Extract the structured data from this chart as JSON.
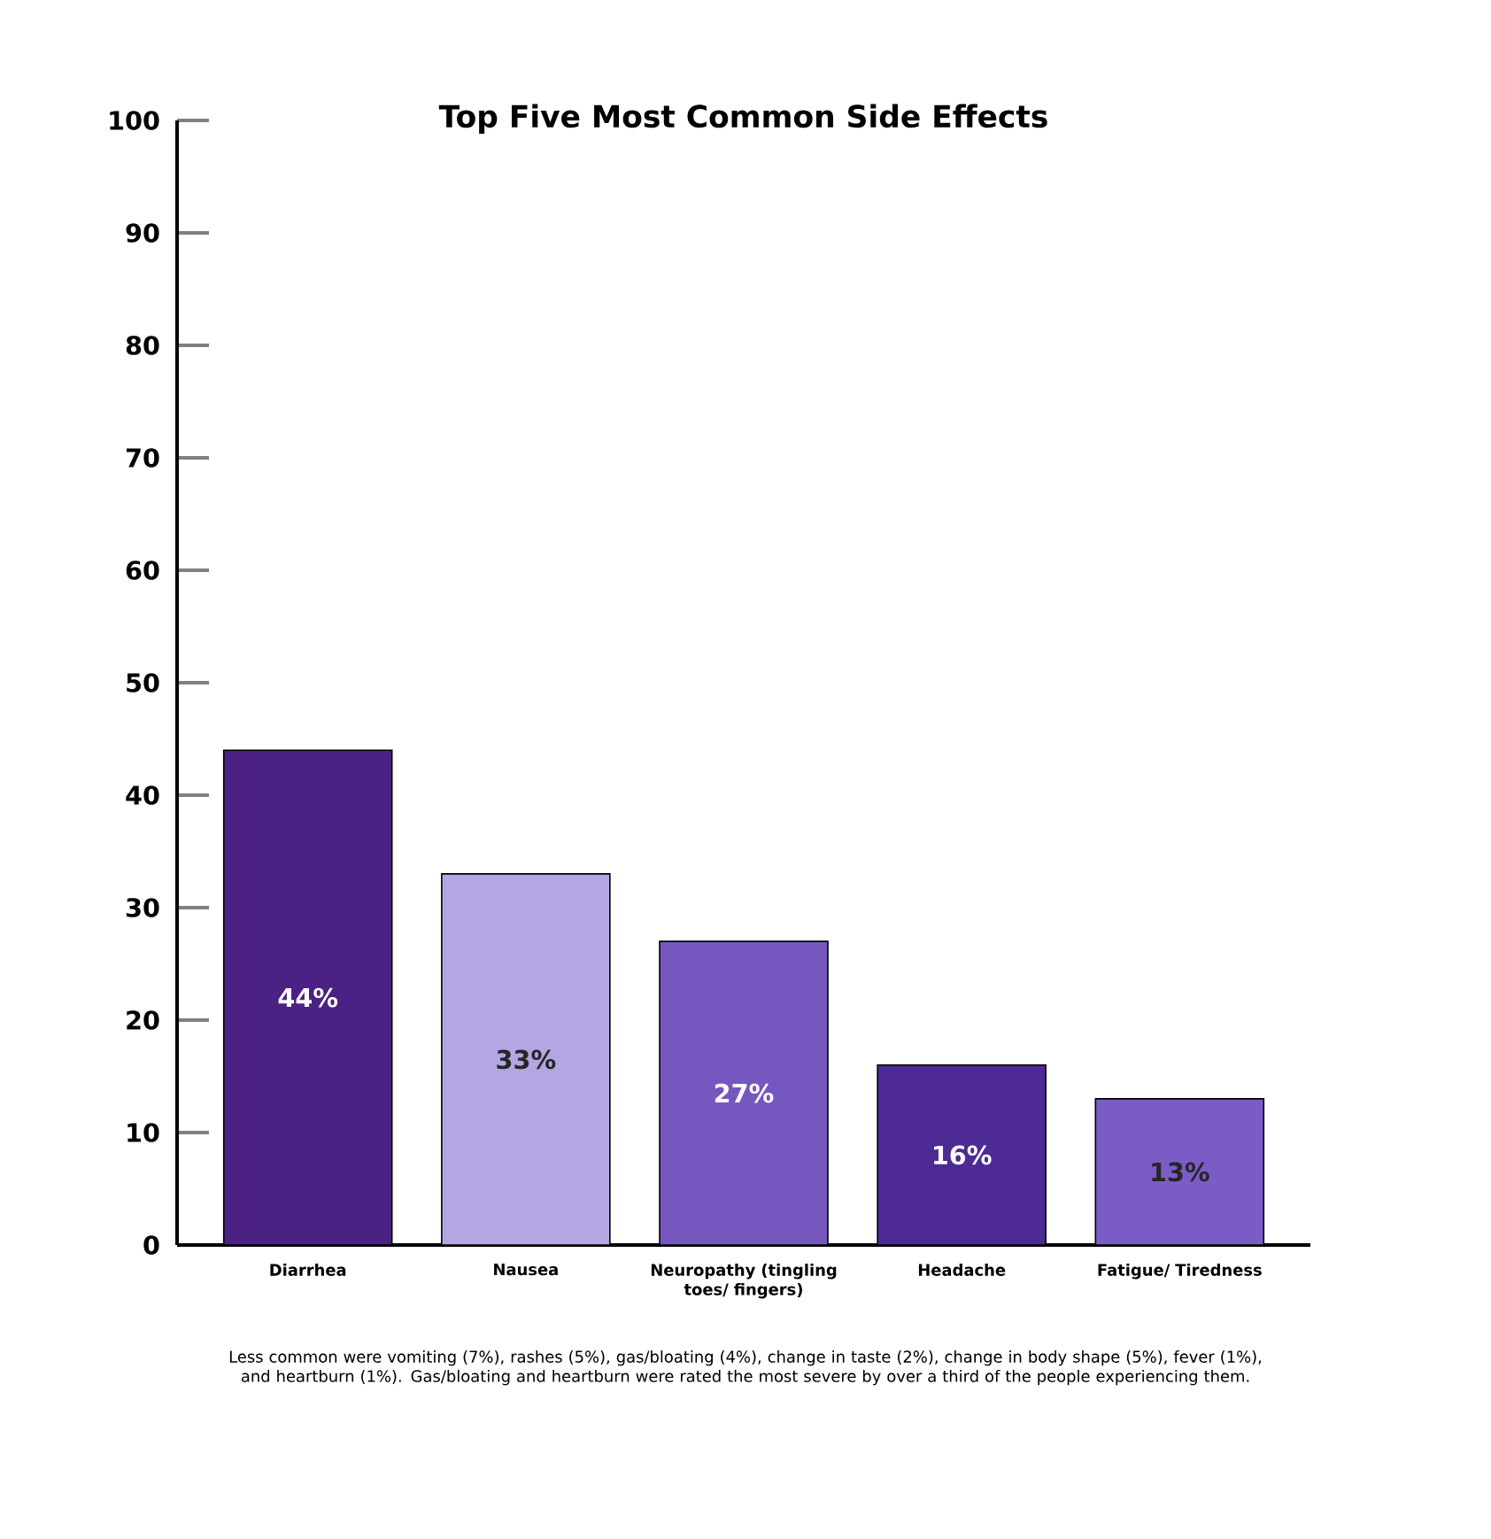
{
  "chart_data": {
    "type": "bar",
    "title": "Top Five Most Common Side Effects",
    "categories": [
      "Diarrhea",
      "Nausea",
      "Neuropathy (tingling toes/ fingers)",
      "Headache",
      "Fatigue/ Tiredness"
    ],
    "values": [
      44,
      33,
      27,
      16,
      13
    ],
    "colors": [
      "#4b2183",
      "#b4a6e2",
      "#7656bf",
      "#4e2a95",
      "#7b5cc6"
    ],
    "value_labels": [
      "44%",
      "33%",
      "27%",
      "16%",
      "13%"
    ],
    "ylim": [
      0,
      100
    ],
    "yticks": [
      0,
      10,
      20,
      30,
      40,
      50,
      60,
      70,
      80,
      90,
      100
    ],
    "annotations": [
      "Less common were vomiting (7%), rashes (5%), gas/bloating (4%), change in taste (2%), change in body shape (5%), fever (1%), and heartburn (1%). Gas/bloating and heartburn were rated the most severe by over a third of the people experiencing them."
    ]
  }
}
